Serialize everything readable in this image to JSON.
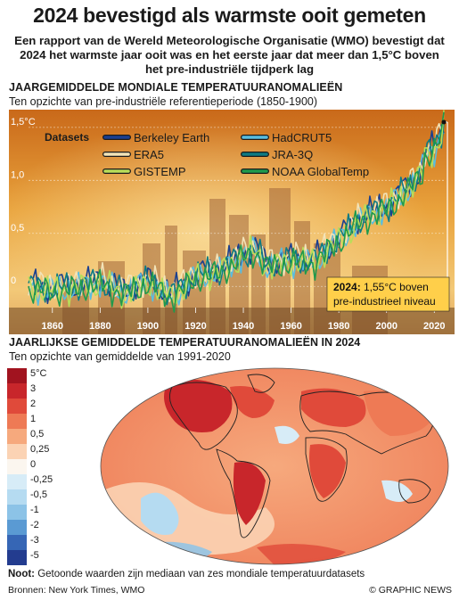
{
  "header": {
    "title": "2024 bevestigd als warmste ooit gemeten",
    "subtitle": "Een rapport van de Wereld Meteorologische Organisatie (WMO) bevestigt dat 2024 het warmste jaar ooit was en het eerste jaar dat meer dan 1,5°C boven het pre-industriële tijdperk lag"
  },
  "section1": {
    "title": "JAARGEMIDDELDE MONDIALE TEMPERATUURANOMALIEËN",
    "subtitle": "Ten opzichte van pre-industriële referentieperiode (1850-1900)",
    "legend_title": "Datasets",
    "callout_year": "2024:",
    "callout_text": "1,55°C boven pre-industrieel niveau"
  },
  "section2": {
    "title": "JAARLIJKSE GEMIDDELDE TEMPERATUURANOMALIEËN IN 2024",
    "subtitle": "Ten opzichte van gemiddelde van 1991-2020",
    "scale_labels": [
      "5°C",
      "3",
      "2",
      "1",
      "0,5",
      "0,25",
      "0",
      "-0,25",
      "-0,5",
      "-1",
      "-2",
      "-3",
      "-5"
    ],
    "scale_colors": [
      "#a1131f",
      "#c8262b",
      "#e04a3a",
      "#ee7a55",
      "#f6a97d",
      "#fbd3b4",
      "#fbf6ef",
      "#d7ecf7",
      "#b5dbf1",
      "#8cc3e7",
      "#5a9ad3",
      "#3666b5",
      "#233c8f"
    ]
  },
  "footer": {
    "note_label": "Noot:",
    "note_text": "Getoonde waarden zijn mediaan van zes mondiale temperatuurdatasets",
    "sources": "Bronnen: New York Times, WMO",
    "credit": "© GRAPHIC NEWS"
  },
  "chart_data": {
    "type": "line",
    "title": "JAARGEMIDDELDE MONDIALE TEMPERATUURANOMALIEËN",
    "ylabel": "°C",
    "xlim": [
      1850,
      2024
    ],
    "ylim": [
      -0.2,
      1.6
    ],
    "xticks": [
      1860,
      1880,
      1900,
      1920,
      1940,
      1960,
      1980,
      2000,
      2020
    ],
    "yticks": [
      {
        "v": 0,
        "label": "0"
      },
      {
        "v": 0.5,
        "label": "0,5"
      },
      {
        "v": 1.0,
        "label": "1,0"
      },
      {
        "v": 1.5,
        "label": "1,5°C"
      }
    ],
    "legend_position": "top-left",
    "series": [
      {
        "name": "Berkeley Earth",
        "color": "#1b3f8f",
        "offset": 0.02
      },
      {
        "name": "HadCRUT5",
        "color": "#59bde0",
        "offset": -0.01
      },
      {
        "name": "ERA5",
        "color": "#f2e3b8",
        "offset": 0.03
      },
      {
        "name": "JRA-3Q",
        "color": "#0e7a82",
        "offset": 0.0
      },
      {
        "name": "GISTEMP",
        "color": "#b9dd59",
        "offset": -0.02
      },
      {
        "name": "NOAA GlobalTemp",
        "color": "#1f9a4c",
        "offset": -0.03
      }
    ],
    "x": [
      1850,
      1860,
      1870,
      1880,
      1890,
      1900,
      1910,
      1920,
      1930,
      1940,
      1945,
      1950,
      1960,
      1970,
      1980,
      1990,
      2000,
      2010,
      2015,
      2016,
      2020,
      2023,
      2024
    ],
    "values": [
      0.0,
      -0.02,
      0.0,
      0.05,
      -0.05,
      0.05,
      -0.08,
      0.1,
      0.15,
      0.3,
      0.35,
      0.2,
      0.25,
      0.25,
      0.45,
      0.65,
      0.75,
      0.95,
      1.1,
      1.25,
      1.3,
      1.45,
      1.55
    ],
    "highlight": {
      "x": 2024,
      "y": 1.55
    }
  }
}
